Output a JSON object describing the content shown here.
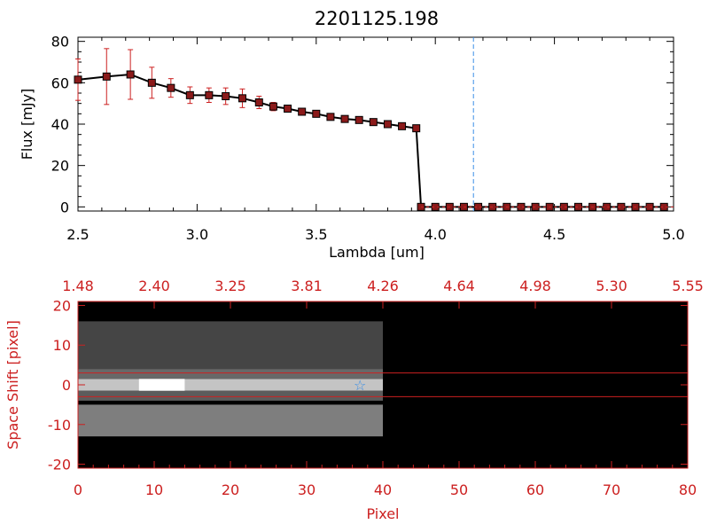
{
  "chart_data": [
    {
      "type": "line",
      "title": "2201125.198",
      "xlabel": "Lambda [um]",
      "ylabel": "Flux [mJy]",
      "xlim": [
        2.5,
        5.0
      ],
      "ylim": [
        -2,
        82
      ],
      "x_ticks": [
        "2.5",
        "3.0",
        "3.5",
        "4.0",
        "4.5",
        "5.0"
      ],
      "y_ticks": [
        "0",
        "20",
        "40",
        "60",
        "80"
      ],
      "reference_line_x": 4.16,
      "reference_line_color": "#3a8ee6",
      "series": [
        {
          "x": [
            2.5,
            2.62,
            2.72,
            2.81,
            2.89,
            2.97,
            3.05,
            3.12,
            3.19,
            3.26,
            3.32,
            3.38,
            3.44,
            3.5,
            3.56,
            3.62,
            3.68,
            3.74,
            3.8,
            3.86,
            3.92,
            3.94,
            4.0,
            4.06,
            4.12,
            4.18,
            4.24,
            4.3,
            4.36,
            4.42,
            4.48,
            4.54,
            4.6,
            4.66,
            4.72,
            4.78,
            4.84,
            4.9,
            4.96
          ],
          "y": [
            61.5,
            63,
            64,
            60,
            57.5,
            54,
            54,
            53.5,
            52.5,
            50.5,
            48.5,
            47.5,
            46,
            45,
            43.5,
            42.5,
            42,
            41,
            40,
            39,
            38,
            0,
            0,
            0,
            0,
            0,
            0,
            0,
            0,
            0,
            0,
            0,
            0,
            0,
            0,
            0,
            0,
            0,
            0
          ],
          "yerr": [
            10,
            13.5,
            12,
            7.5,
            4.5,
            4,
            3.5,
            4,
            4.5,
            3,
            2,
            1.5,
            1,
            1,
            1,
            1,
            1,
            1,
            1,
            1,
            1,
            0,
            0,
            0,
            0,
            0,
            0,
            0,
            0,
            0,
            0,
            0,
            0,
            0,
            0,
            0,
            0,
            0,
            0
          ],
          "line_color": "#000000",
          "marker_color": "#8b1a1a",
          "errorbar_color": "#cc2020"
        }
      ]
    },
    {
      "type": "heatmap",
      "xlabel": "Pixel",
      "ylabel": "Space Shift [pixel]",
      "xlim": [
        0,
        80
      ],
      "ylim": [
        -21,
        21
      ],
      "x_ticks": [
        "0",
        "10",
        "20",
        "30",
        "40",
        "50",
        "60",
        "70",
        "80"
      ],
      "y_ticks": [
        "-20",
        "-10",
        "0",
        "10",
        "20"
      ],
      "top_ticks": [
        "1.48",
        "2.40",
        "3.25",
        "3.81",
        "4.26",
        "4.64",
        "4.98",
        "5.30",
        "5.55"
      ],
      "aperture_lines_y": [
        3,
        -3
      ],
      "axis_color": "#cc2020",
      "marker_pixel": [
        37,
        0
      ],
      "marker_color": "#3a8ee6",
      "data_extent_pixel": 40,
      "bands": [
        {
          "y0": -1.5,
          "y1": 1.5,
          "level": 0.85
        },
        {
          "y0": 1.5,
          "y1": 4,
          "level": 0.45
        },
        {
          "y0": -4,
          "y1": -1.5,
          "level": 0.4
        },
        {
          "y0": -13,
          "y1": -5,
          "level": 0.55
        },
        {
          "y0": 4,
          "y1": 16,
          "level": 0.3
        }
      ]
    }
  ]
}
